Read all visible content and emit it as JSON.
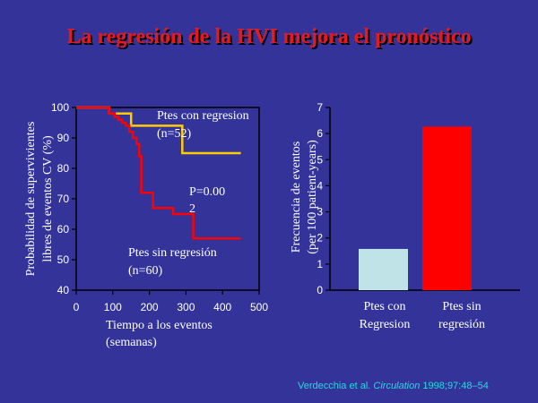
{
  "title": "La regresión de la HVI mejora el pronóstico",
  "chart_data": [
    {
      "type": "line",
      "ylabel": [
        "Probabilidad  de supervivientes",
        "libres de eventos CV (%)"
      ],
      "xlabel": [
        "Tiempo a los eventos",
        "(semanas)"
      ],
      "xlim": [
        0,
        500
      ],
      "ylim": [
        40,
        100
      ],
      "x_ticks": [
        "0",
        "100",
        "200",
        "300",
        "400",
        "500"
      ],
      "y_ticks": [
        "100",
        "90",
        "80",
        "70",
        "60",
        "50",
        "40"
      ],
      "series": [
        {
          "name": [
            "Ptes con regresion",
            "(n=52)"
          ],
          "color": "#ffcc00",
          "points": [
            [
              0,
              100
            ],
            [
              90,
              100
            ],
            [
              90,
              98
            ],
            [
              150,
              98
            ],
            [
              150,
              94
            ],
            [
              290,
              94
            ],
            [
              290,
              85
            ],
            [
              450,
              85
            ]
          ]
        },
        {
          "name": [
            "Ptes sin regresión",
            "(n=60)"
          ],
          "color": "#ff0000",
          "points": [
            [
              0,
              100
            ],
            [
              90,
              100
            ],
            [
              90,
              98
            ],
            [
              105,
              98
            ],
            [
              105,
              97
            ],
            [
              115,
              97
            ],
            [
              115,
              96
            ],
            [
              125,
              96
            ],
            [
              125,
              95
            ],
            [
              135,
              95
            ],
            [
              135,
              94
            ],
            [
              145,
              94
            ],
            [
              145,
              92
            ],
            [
              155,
              92
            ],
            [
              155,
              90
            ],
            [
              165,
              90
            ],
            [
              165,
              88
            ],
            [
              172,
              88
            ],
            [
              172,
              84
            ],
            [
              178,
              84
            ],
            [
              178,
              72
            ],
            [
              210,
              72
            ],
            [
              210,
              67
            ],
            [
              265,
              67
            ],
            [
              265,
              65
            ],
            [
              320,
              65
            ],
            [
              320,
              57
            ],
            [
              450,
              57
            ]
          ]
        }
      ],
      "annotation": [
        "P=0.00",
        "2"
      ]
    },
    {
      "type": "bar",
      "ylabel": [
        "Frecuencia de eventos",
        "(per 100 patient-years)"
      ],
      "ylim": [
        0,
        7
      ],
      "y_ticks": [
        "0",
        "1",
        "2",
        "3",
        "4",
        "5",
        "6",
        "7"
      ],
      "categories": [
        [
          "Ptes con",
          "Regresion"
        ],
        [
          "Ptes sin",
          "regresión"
        ]
      ],
      "values": [
        1.58,
        6.27
      ],
      "colors": [
        "#bfe3e6",
        "#ff0000"
      ]
    }
  ],
  "citation": {
    "authors": "Verdecchia et al. ",
    "journal": "Circulation",
    "rest": " 1998;97:48–54"
  }
}
